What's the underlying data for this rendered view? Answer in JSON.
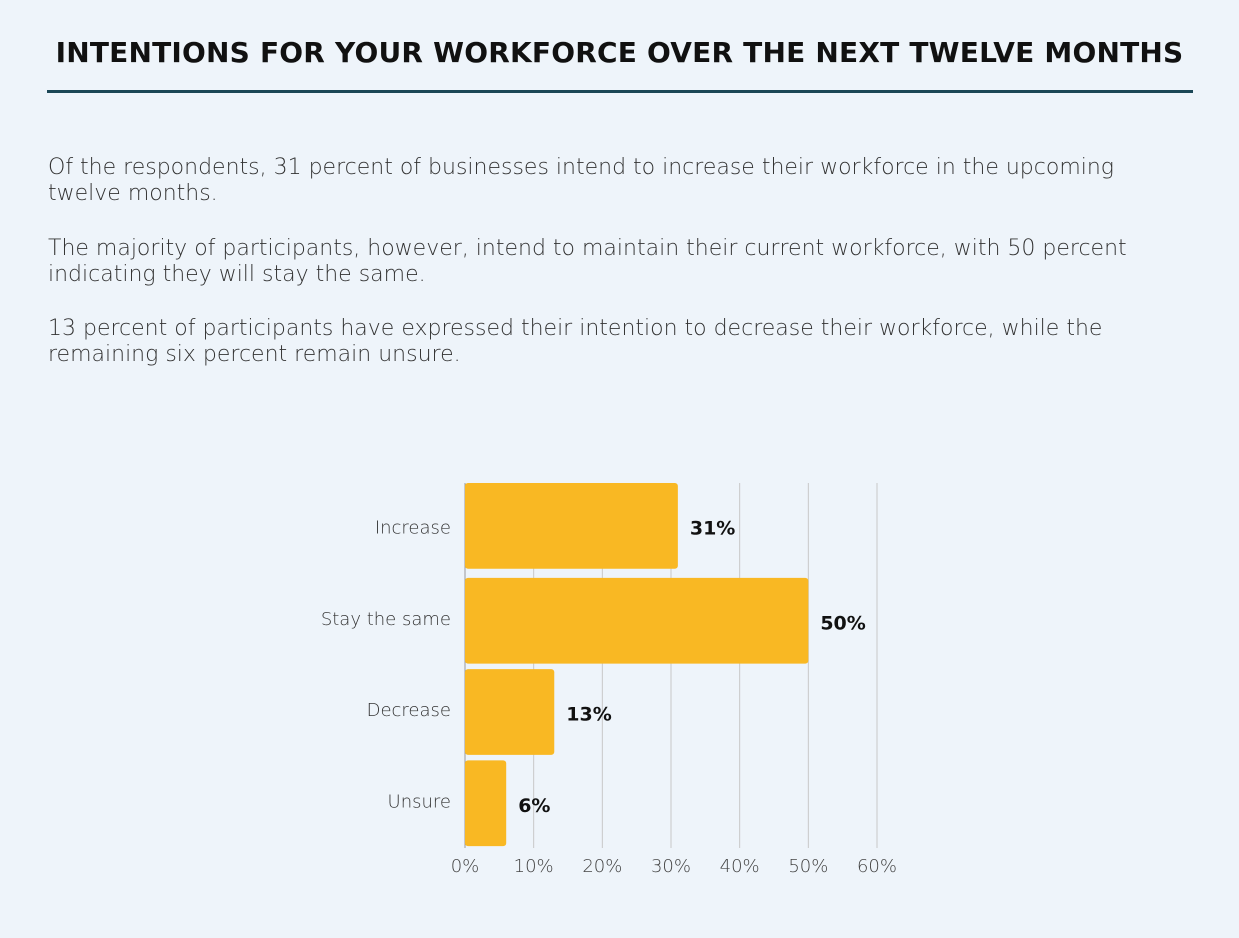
{
  "header": {
    "title": "INTENTIONS FOR YOUR WORKFORCE OVER THE NEXT TWELVE MONTHS"
  },
  "paragraphs": [
    "Of the respondents, 31 percent of businesses intend to increase their workforce in the upcoming twelve months.",
    "The majority of participants, however, intend to maintain their current workforce, with 50 percent indicating they will stay the same.",
    "13 percent of participants have expressed their intention to decrease their workforce, while the remaining six percent remain unsure."
  ],
  "chart_data": {
    "type": "bar",
    "orientation": "horizontal",
    "categories": [
      "Increase",
      "Stay the same",
      "Decrease",
      "Unsure"
    ],
    "values": [
      31,
      50,
      13,
      6
    ],
    "value_labels": [
      "31%",
      "50%",
      "13%",
      "6%"
    ],
    "color": "#f9b823",
    "xlim": [
      0,
      60
    ],
    "xticks": [
      {
        "value": 0,
        "label": "0%"
      },
      {
        "value": 10,
        "label": "10%"
      },
      {
        "value": 20,
        "label": "20%"
      },
      {
        "value": 30,
        "label": "30%"
      },
      {
        "value": 40,
        "label": "40%"
      },
      {
        "value": 50,
        "label": "50%"
      },
      {
        "value": 60,
        "label": "60%"
      }
    ],
    "grid": true
  }
}
